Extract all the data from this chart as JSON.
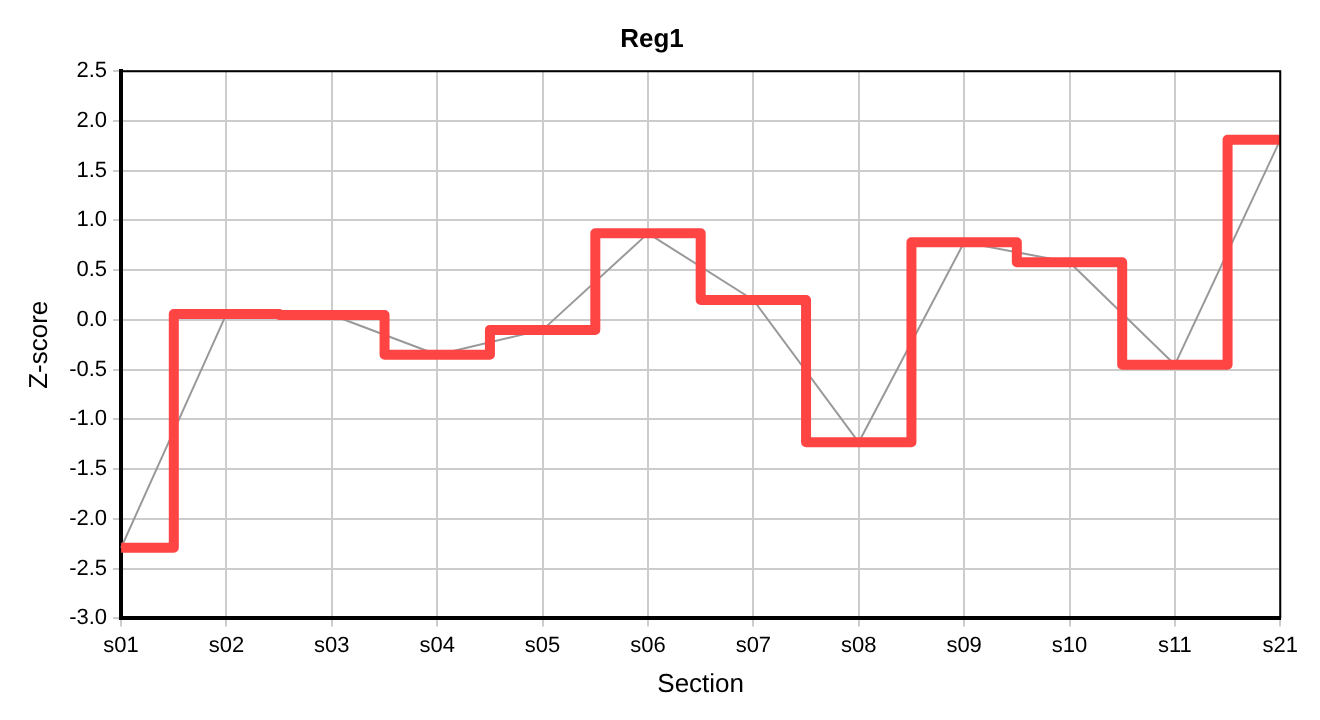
{
  "chart_data": {
    "type": "step",
    "title": "Reg1",
    "xlabel": "Section",
    "ylabel": "Z-score",
    "categories": [
      "s01",
      "s02",
      "s03",
      "s04",
      "s05",
      "s06",
      "s07",
      "s08",
      "s09",
      "s10",
      "s11",
      "s21"
    ],
    "series": [
      {
        "color": "#ff4444",
        "values": [
          -2.29,
          0.06,
          0.05,
          -0.35,
          -0.1,
          0.87,
          0.2,
          -1.23,
          0.78,
          0.58,
          -0.45,
          1.81
        ]
      },
      {
        "type": "line",
        "color": "#999999",
        "values": [
          -2.29,
          0.06,
          0.05,
          -0.35,
          -0.1,
          0.87,
          0.2,
          -1.23,
          0.78,
          0.58,
          -0.45,
          1.81
        ]
      }
    ],
    "ylim": [
      -3,
      2.5
    ],
    "yticks": [
      {
        "value": -3,
        "label": "-3.0"
      },
      -2.5,
      {
        "value": -2,
        "label": "-2.0"
      },
      -1.5,
      {
        "value": -1,
        "label": "-1.0"
      },
      -0.5,
      {
        "value": 0,
        "label": "0.0"
      },
      0.5,
      {
        "value": 1,
        "label": "1.0"
      },
      1.5,
      {
        "value": 2,
        "label": "2.0"
      },
      2.5
    ],
    "grid": true,
    "legend": false,
    "marker": "none",
    "line_style": "solid"
  }
}
